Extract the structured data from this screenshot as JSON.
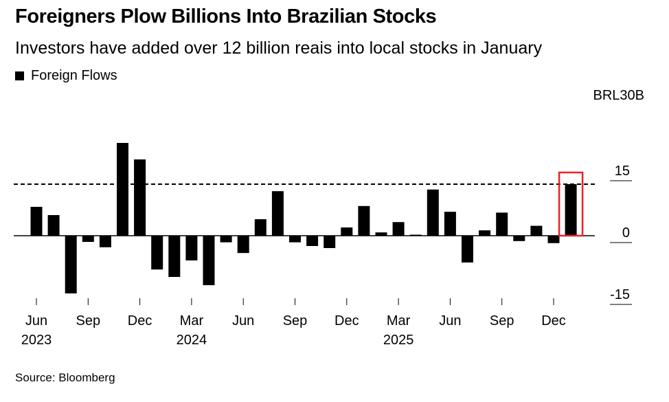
{
  "title": "Foreigners Plow Billions Into Brazilian Stocks",
  "subtitle": "Investors have added over 12 billion reais into local stocks in January",
  "source": "Source: Bloomberg",
  "chart_data": {
    "type": "bar",
    "title": "Foreigners Plow Billions Into Brazilian Stocks",
    "subtitle": "Investors have added over 12 billion reais into local stocks in January",
    "unit_label": "BRL30B",
    "series": [
      {
        "name": "Foreign Flows",
        "color": "#000000",
        "values": [
          7.0,
          5.0,
          -14.0,
          -1.5,
          -2.8,
          22.5,
          18.5,
          -8.2,
          -10.0,
          -6.0,
          -12.0,
          -1.6,
          -4.2,
          4.0,
          10.8,
          -1.6,
          -2.5,
          -3.0,
          2.0,
          7.2,
          0.8,
          3.3,
          0.2,
          11.2,
          5.8,
          -6.5,
          1.3,
          5.6,
          -1.3,
          2.4,
          -1.8,
          12.5
        ]
      }
    ],
    "months": [
      "2023-06",
      "2023-07",
      "2023-08",
      "2023-09",
      "2023-10",
      "2023-11",
      "2023-12",
      "2024-01",
      "2024-02",
      "2024-03",
      "2024-04",
      "2024-05",
      "2024-06",
      "2024-07",
      "2024-08",
      "2024-09",
      "2024-10",
      "2024-11",
      "2024-12",
      "2025-01",
      "2025-02",
      "2025-03",
      "2025-04",
      "2025-05",
      "2025-06",
      "2025-07",
      "2025-08",
      "2025-09",
      "2025-10",
      "2025-11",
      "2025-12",
      "2026-01"
    ],
    "x_tick_labels": [
      {
        "index": 0,
        "month": "Jun",
        "year": "2023"
      },
      {
        "index": 3,
        "month": "Sep",
        "year": ""
      },
      {
        "index": 6,
        "month": "Dec",
        "year": ""
      },
      {
        "index": 9,
        "month": "Mar",
        "year": "2024"
      },
      {
        "index": 12,
        "month": "Jun",
        "year": ""
      },
      {
        "index": 15,
        "month": "Sep",
        "year": ""
      },
      {
        "index": 18,
        "month": "Dec",
        "year": ""
      },
      {
        "index": 21,
        "month": "Mar",
        "year": "2025"
      },
      {
        "index": 24,
        "month": "Jun",
        "year": ""
      },
      {
        "index": 27,
        "month": "Sep",
        "year": ""
      },
      {
        "index": 30,
        "month": "Dec",
        "year": ""
      }
    ],
    "y_ticks": [
      {
        "value": 15,
        "label": "15"
      },
      {
        "value": 0,
        "label": "0"
      },
      {
        "value": -15,
        "label": "-15"
      }
    ],
    "ylim": [
      -15,
      30
    ],
    "reference_line": {
      "value": 12.5,
      "style": "dashed"
    },
    "highlight": {
      "index": 31,
      "color": "#e8212b"
    },
    "grid": false,
    "legend_position": "top-left"
  }
}
